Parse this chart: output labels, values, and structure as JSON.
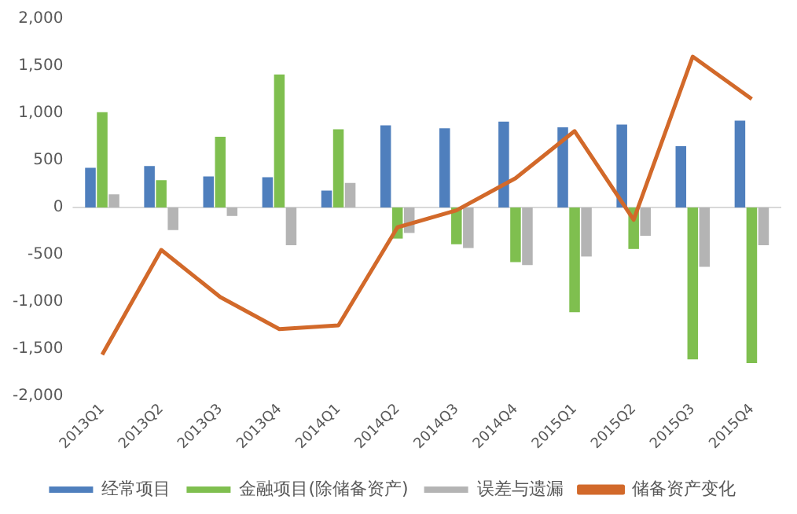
{
  "chart_data": {
    "type": "bar",
    "categories": [
      "2013Q1",
      "2013Q2",
      "2013Q3",
      "2013Q4",
      "2014Q1",
      "2014Q2",
      "2014Q3",
      "2014Q4",
      "2015Q1",
      "2015Q2",
      "2015Q3",
      "2015Q4"
    ],
    "series": [
      {
        "name": "经常项目",
        "color": "#4f7fbd",
        "values": [
          420,
          440,
          330,
          320,
          180,
          870,
          840,
          910,
          850,
          880,
          650,
          920
        ]
      },
      {
        "name": "金融项目(除储备资产)",
        "color": "#7fbf4f",
        "values": [
          1010,
          290,
          750,
          1410,
          830,
          -330,
          -390,
          -580,
          -1110,
          -440,
          -1610,
          -1650
        ]
      },
      {
        "name": "误差与遗漏",
        "color": "#b4b4b4",
        "values": [
          140,
          -240,
          -90,
          -400,
          260,
          -270,
          -430,
          -610,
          -520,
          -300,
          -630,
          -400
        ]
      },
      {
        "name": "储备资产变化",
        "type": "line",
        "color": "#d2692a",
        "values": [
          -1560,
          -450,
          -950,
          -1290,
          -1250,
          -210,
          -30,
          310,
          810,
          -130,
          1600,
          1150
        ]
      }
    ],
    "ylim": [
      -2000,
      2000
    ],
    "yticks": [
      {
        "value": -2000,
        "label": "-2,000"
      },
      {
        "value": -1500,
        "label": "-1,500"
      },
      {
        "value": -1000,
        "label": "-1,000"
      },
      -500,
      0,
      500,
      {
        "value": 1000,
        "label": "1,000"
      },
      {
        "value": 1500,
        "label": "1,500"
      },
      {
        "value": 2000,
        "label": "2,000"
      }
    ],
    "ref_lines": [
      {
        "axis": "y",
        "value": 0,
        "color": "#d9d9d9"
      }
    ],
    "grid": false,
    "legend": "bottom",
    "marker": "none"
  }
}
